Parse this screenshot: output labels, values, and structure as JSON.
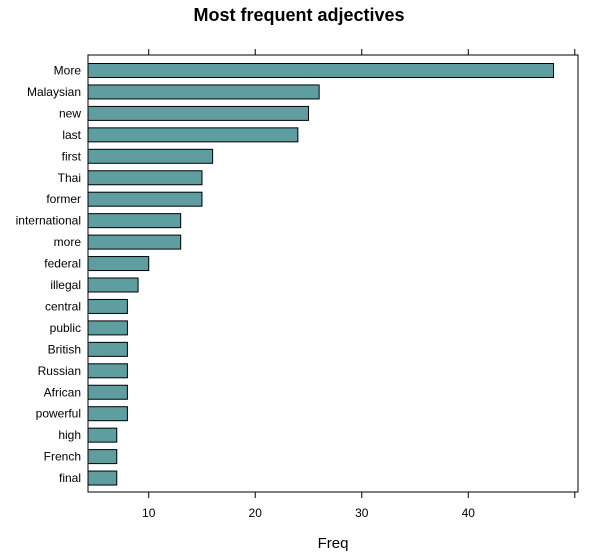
{
  "chart_data": {
    "type": "bar",
    "orientation": "horizontal",
    "title": "Most frequent adjectives",
    "xlabel": "Freq",
    "ylabel": "",
    "categories": [
      "More",
      "Malaysian",
      "new",
      "last",
      "first",
      "Thai",
      "former",
      "international",
      "more",
      "federal",
      "illegal",
      "central",
      "public",
      "British",
      "Russian",
      "African",
      "powerful",
      "high",
      "French",
      "final"
    ],
    "values": [
      48,
      26,
      25,
      24,
      16,
      15,
      15,
      13,
      13,
      10,
      9,
      8,
      8,
      8,
      8,
      8,
      8,
      7,
      7,
      7
    ],
    "xlim": [
      4.3,
      50.3
    ],
    "xticks": [
      10,
      20,
      30,
      40
    ],
    "grid": false,
    "bar_color": "#5f9ea0",
    "bar_edge_color": "#000000"
  }
}
